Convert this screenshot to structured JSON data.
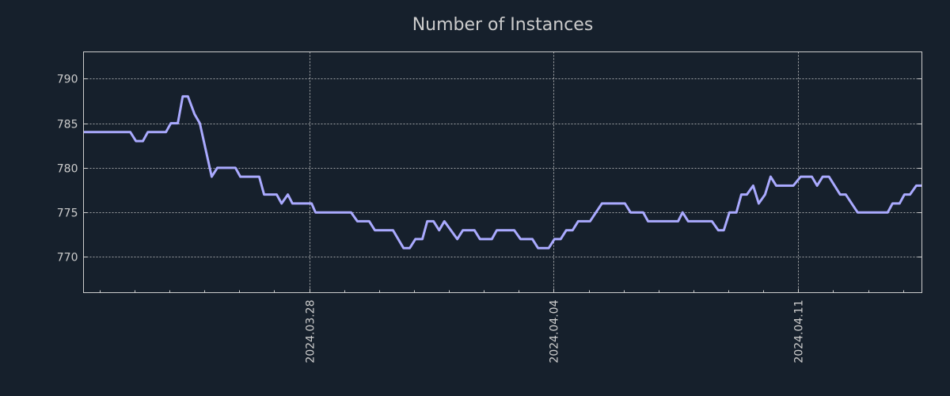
{
  "colors": {
    "background": "#16202c",
    "line": "#aaaaff",
    "grid": "#cccccc",
    "text": "#cccccc"
  },
  "chart_data": {
    "type": "line",
    "title": "Number of Instances",
    "xlabel": "",
    "ylabel": "",
    "x_unit": "days since 2024.03.28",
    "xlim": [
      -6.46,
      17.54
    ],
    "ylim": [
      766,
      793
    ],
    "grid": true,
    "y_ticks": [
      770,
      775,
      780,
      785,
      790
    ],
    "x_ticks": [
      {
        "value": 0,
        "label": "2024.03.28"
      },
      {
        "value": 7,
        "label": "2024.04.04"
      },
      {
        "value": 14,
        "label": "2024.04.11"
      }
    ],
    "x_minor_ticks": [
      -6,
      -5,
      -4,
      -3,
      -2,
      -1,
      1,
      2,
      3,
      4,
      5,
      6,
      8,
      9,
      10,
      11,
      12,
      13,
      15,
      16,
      17
    ],
    "series": [
      {
        "name": "Number of Instances",
        "x": [
          -6.46,
          -5.12,
          -4.96,
          -4.76,
          -4.62,
          -4.1,
          -3.96,
          -3.76,
          -3.62,
          -3.47,
          -3.28,
          -3.13,
          -2.79,
          -2.63,
          -2.11,
          -1.97,
          -1.43,
          -1.29,
          -0.93,
          -0.79,
          -0.61,
          -0.48,
          0.07,
          0.18,
          1.2,
          1.38,
          1.72,
          1.88,
          2.4,
          2.7,
          2.88,
          3.04,
          3.24,
          3.38,
          3.56,
          3.72,
          3.87,
          4.24,
          4.4,
          4.73,
          4.89,
          5.23,
          5.37,
          5.87,
          6.05,
          6.39,
          6.55,
          6.86,
          7.02,
          7.2,
          7.36,
          7.54,
          7.7,
          8.04,
          8.38,
          9.04,
          9.2,
          9.56,
          9.7,
          10.56,
          10.69,
          10.85,
          11.53,
          11.71,
          11.87,
          12.03,
          12.23,
          12.37,
          12.53,
          12.71,
          12.87,
          13.05,
          13.21,
          13.37,
          13.86,
          14.07,
          14.39,
          14.54,
          14.7,
          14.88,
          15.2,
          15.36,
          15.7,
          16.56,
          16.7,
          16.9,
          17.04,
          17.2,
          17.38,
          17.54
        ],
        "y": [
          784,
          784,
          783,
          783,
          784,
          784,
          785,
          785,
          788,
          788,
          786,
          785,
          779,
          780,
          780,
          779,
          779,
          777,
          777,
          776,
          777,
          776,
          776,
          775,
          775,
          774,
          774,
          773,
          773,
          771,
          771,
          772,
          772,
          774,
          774,
          773,
          774,
          772,
          773,
          773,
          772,
          772,
          773,
          773,
          772,
          772,
          771,
          771,
          772,
          772,
          773,
          773,
          774,
          774,
          776,
          776,
          775,
          775,
          774,
          774,
          775,
          774,
          774,
          773,
          773,
          775,
          775,
          777,
          777,
          778,
          776,
          777,
          779,
          778,
          778,
          779,
          779,
          778,
          779,
          779,
          777,
          777,
          775,
          775,
          776,
          776,
          777,
          777,
          778,
          778
        ]
      }
    ]
  }
}
